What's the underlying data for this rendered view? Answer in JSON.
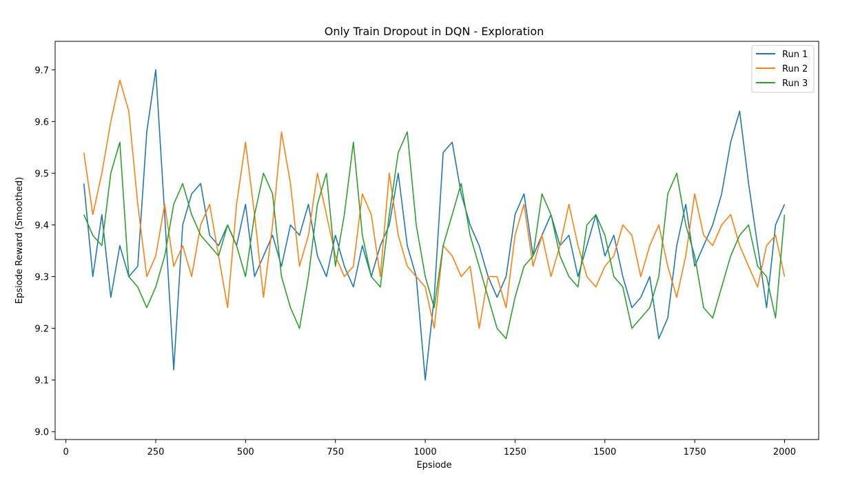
{
  "chart_data": {
    "type": "line",
    "title": "Only Train Dropout in DQN - Exploration",
    "xlabel": "Epsiode",
    "ylabel": "Epsiode Reward (Smoothed)",
    "xlim": [
      -30,
      2095
    ],
    "ylim": [
      8.985,
      9.755
    ],
    "xticks": [
      0,
      250,
      500,
      750,
      1000,
      1250,
      1500,
      1750,
      2000
    ],
    "yticks": [
      9.0,
      9.1,
      9.2,
      9.3,
      9.4,
      9.5,
      9.6,
      9.7
    ],
    "grid": false,
    "legend_position": "top-right",
    "x": [
      50,
      75,
      100,
      125,
      150,
      175,
      200,
      225,
      250,
      275,
      300,
      325,
      350,
      375,
      400,
      425,
      450,
      475,
      500,
      525,
      550,
      575,
      600,
      625,
      650,
      675,
      700,
      725,
      750,
      775,
      800,
      825,
      850,
      875,
      900,
      925,
      950,
      975,
      1000,
      1025,
      1050,
      1075,
      1100,
      1125,
      1150,
      1175,
      1200,
      1225,
      1250,
      1275,
      1300,
      1325,
      1350,
      1375,
      1400,
      1425,
      1450,
      1475,
      1500,
      1525,
      1550,
      1575,
      1600,
      1625,
      1650,
      1675,
      1700,
      1725,
      1750,
      1775,
      1800,
      1825,
      1850,
      1875,
      1900,
      1925,
      1950,
      1975,
      2000
    ],
    "series": [
      {
        "name": "Run 1",
        "color": "#1f77b4",
        "values": [
          9.48,
          9.3,
          9.42,
          9.26,
          9.36,
          9.3,
          9.32,
          9.58,
          9.7,
          9.42,
          9.12,
          9.4,
          9.46,
          9.48,
          9.38,
          9.36,
          9.4,
          9.36,
          9.44,
          9.3,
          9.34,
          9.38,
          9.32,
          9.4,
          9.38,
          9.44,
          9.34,
          9.3,
          9.38,
          9.32,
          9.28,
          9.36,
          9.3,
          9.36,
          9.4,
          9.5,
          9.36,
          9.3,
          9.1,
          9.26,
          9.54,
          9.56,
          9.46,
          9.4,
          9.36,
          9.3,
          9.26,
          9.3,
          9.42,
          9.46,
          9.34,
          9.38,
          9.42,
          9.36,
          9.38,
          9.3,
          9.36,
          9.42,
          9.34,
          9.38,
          9.3,
          9.24,
          9.26,
          9.3,
          9.18,
          9.22,
          9.36,
          9.44,
          9.32,
          9.36,
          9.4,
          9.46,
          9.56,
          9.62,
          9.48,
          9.36,
          9.24,
          9.4,
          9.44
        ]
      },
      {
        "name": "Run 2",
        "color": "#ff7f0e",
        "values": [
          9.54,
          9.42,
          9.5,
          9.6,
          9.68,
          9.62,
          9.44,
          9.3,
          9.34,
          9.44,
          9.32,
          9.36,
          9.3,
          9.4,
          9.44,
          9.34,
          9.24,
          9.44,
          9.56,
          9.42,
          9.26,
          9.4,
          9.58,
          9.48,
          9.32,
          9.38,
          9.5,
          9.42,
          9.34,
          9.3,
          9.32,
          9.46,
          9.42,
          9.3,
          9.5,
          9.38,
          9.32,
          9.3,
          9.28,
          9.2,
          9.36,
          9.34,
          9.3,
          9.32,
          9.2,
          9.3,
          9.3,
          9.24,
          9.38,
          9.44,
          9.32,
          9.38,
          9.3,
          9.36,
          9.44,
          9.36,
          9.3,
          9.28,
          9.32,
          9.34,
          9.4,
          9.38,
          9.3,
          9.36,
          9.4,
          9.32,
          9.26,
          9.34,
          9.46,
          9.38,
          9.36,
          9.4,
          9.42,
          9.36,
          9.32,
          9.28,
          9.36,
          9.38,
          9.3
        ]
      },
      {
        "name": "Run 3",
        "color": "#2ca02c",
        "values": [
          9.42,
          9.38,
          9.36,
          9.5,
          9.56,
          9.3,
          9.28,
          9.24,
          9.28,
          9.34,
          9.44,
          9.48,
          9.42,
          9.38,
          9.36,
          9.34,
          9.4,
          9.36,
          9.3,
          9.42,
          9.5,
          9.46,
          9.3,
          9.24,
          9.2,
          9.3,
          9.44,
          9.5,
          9.32,
          9.42,
          9.56,
          9.38,
          9.3,
          9.28,
          9.42,
          9.54,
          9.58,
          9.4,
          9.3,
          9.24,
          9.36,
          9.42,
          9.48,
          9.38,
          9.32,
          9.26,
          9.2,
          9.18,
          9.26,
          9.32,
          9.34,
          9.46,
          9.42,
          9.34,
          9.3,
          9.28,
          9.4,
          9.42,
          9.38,
          9.3,
          9.28,
          9.2,
          9.22,
          9.24,
          9.3,
          9.46,
          9.5,
          9.4,
          9.34,
          9.24,
          9.22,
          9.28,
          9.34,
          9.38,
          9.4,
          9.32,
          9.3,
          9.22,
          9.42
        ]
      }
    ]
  }
}
